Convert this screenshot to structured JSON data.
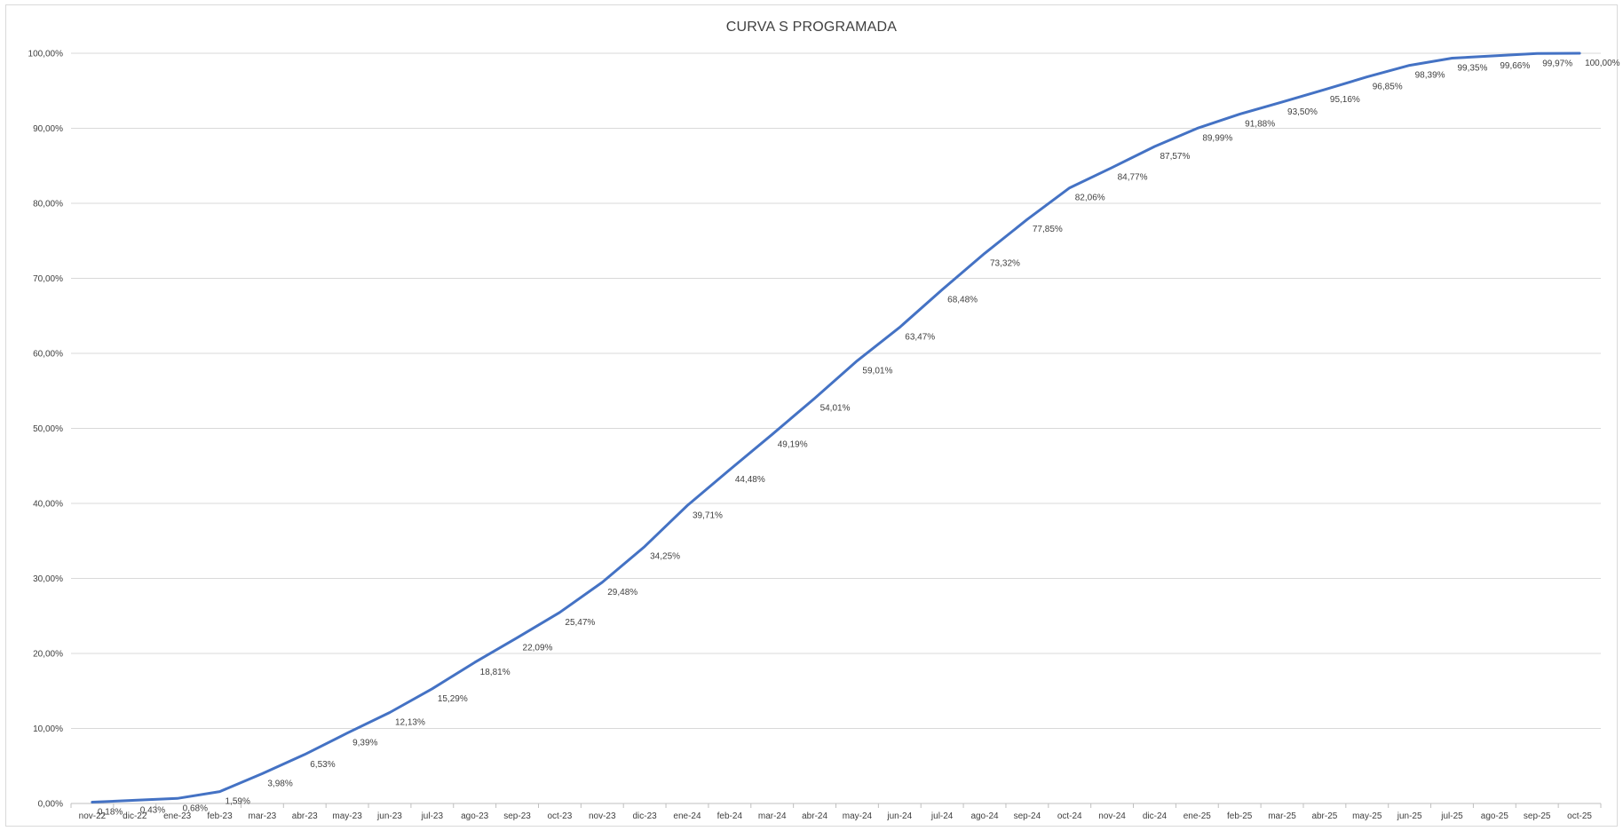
{
  "chart_data": {
    "type": "line",
    "title": "CURVA S PROGRAMADA",
    "xlabel": "",
    "ylabel": "",
    "ylim": [
      0,
      100
    ],
    "y_ticks": [
      "0,00%",
      "10,00%",
      "20,00%",
      "30,00%",
      "40,00%",
      "50,00%",
      "60,00%",
      "70,00%",
      "80,00%",
      "90,00%",
      "100,00%"
    ],
    "grid": true,
    "legend": "none",
    "line_color": "#4472c4",
    "categories": [
      "nov-22",
      "dic-22",
      "ene-23",
      "feb-23",
      "mar-23",
      "abr-23",
      "may-23",
      "jun-23",
      "jul-23",
      "ago-23",
      "sep-23",
      "oct-23",
      "nov-23",
      "dic-23",
      "ene-24",
      "feb-24",
      "mar-24",
      "abr-24",
      "may-24",
      "jun-24",
      "jul-24",
      "ago-24",
      "sep-24",
      "oct-24",
      "nov-24",
      "dic-24",
      "ene-25",
      "feb-25",
      "mar-25",
      "abr-25",
      "may-25",
      "jun-25",
      "jul-25",
      "ago-25",
      "sep-25",
      "oct-25"
    ],
    "series": [
      {
        "values": [
          0.18,
          0.43,
          0.68,
          1.59,
          3.98,
          6.53,
          9.39,
          12.13,
          15.29,
          18.81,
          22.09,
          25.47,
          29.48,
          34.25,
          39.71,
          44.48,
          49.19,
          54.01,
          59.01,
          63.47,
          68.48,
          73.32,
          77.85,
          82.06,
          84.77,
          87.57,
          89.99,
          91.88,
          93.5,
          95.16,
          96.85,
          98.39,
          99.35,
          99.66,
          99.97,
          100.0
        ],
        "labels": [
          "0,18%",
          "0,43%",
          "0,68%",
          "1,59%",
          "3,98%",
          "6,53%",
          "9,39%",
          "12,13%",
          "15,29%",
          "18,81%",
          "22,09%",
          "25,47%",
          "29,48%",
          "34,25%",
          "39,71%",
          "44,48%",
          "49,19%",
          "54,01%",
          "59,01%",
          "63,47%",
          "68,48%",
          "73,32%",
          "77,85%",
          "82,06%",
          "84,77%",
          "87,57%",
          "89,99%",
          "91,88%",
          "93,50%",
          "95,16%",
          "96,85%",
          "98,39%",
          "99,35%",
          "99,66%",
          "99,97%",
          "100,00%"
        ]
      }
    ]
  }
}
